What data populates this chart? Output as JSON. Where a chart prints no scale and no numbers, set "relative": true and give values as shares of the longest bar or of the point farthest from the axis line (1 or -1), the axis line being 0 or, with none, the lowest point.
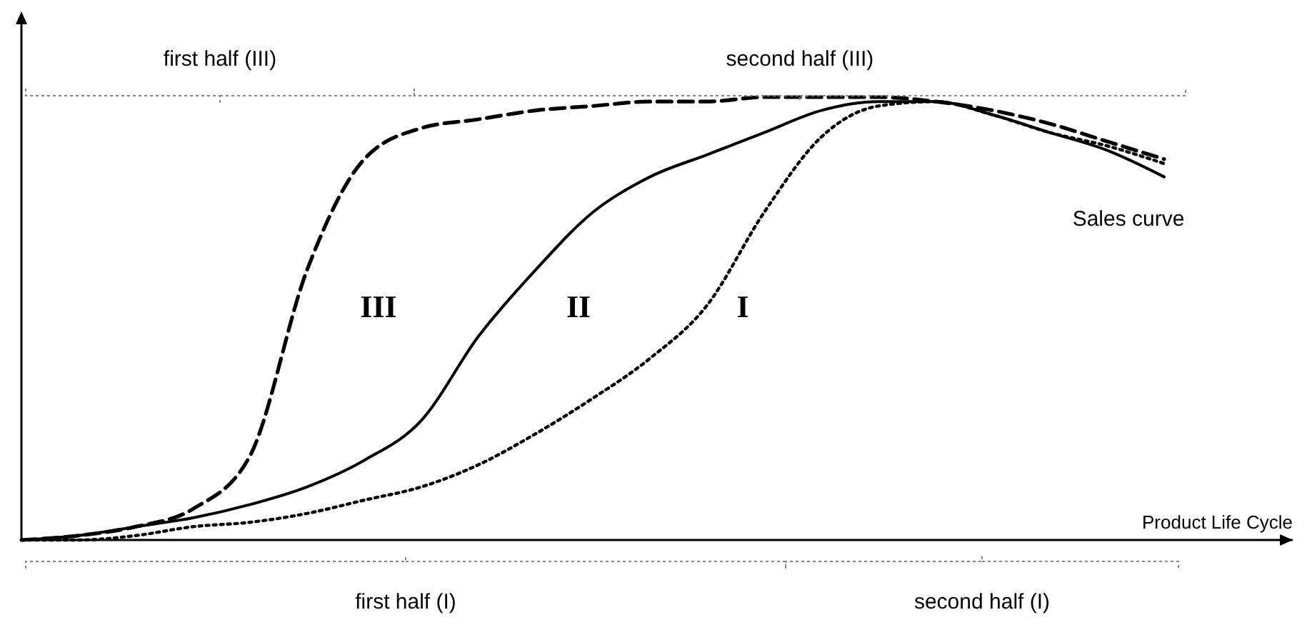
{
  "chart_data": {
    "type": "line",
    "relative": true,
    "xlabel": "Product Life Cycle",
    "categories": [
      null,
      null,
      null,
      null,
      null,
      null,
      null,
      null,
      null,
      null,
      null,
      null,
      null,
      null,
      null,
      null,
      null,
      null,
      null,
      null,
      null
    ],
    "series": [
      {
        "name": "III",
        "color": "#000000",
        "line_style": "dashed",
        "values": [
          0,
          0.01,
          0.03,
          0.07,
          0.19,
          0.61,
          0.86,
          0.93,
          0.95,
          0.97,
          0.98,
          0.99,
          0.99,
          1,
          1,
          1,
          0.99,
          0.97,
          0.94,
          0.9,
          0.86
        ]
      },
      {
        "name": "II",
        "color": "#000000",
        "line_style": "solid",
        "values": [
          0,
          0.01,
          0.03,
          0.05,
          0.08,
          0.12,
          0.18,
          0.27,
          0.46,
          0.61,
          0.74,
          0.82,
          0.87,
          0.92,
          0.97,
          0.99,
          0.99,
          0.96,
          0.92,
          0.88,
          0.82
        ]
      },
      {
        "name": "I",
        "color": "#000000",
        "line_style": "dotted",
        "values": [
          0,
          0,
          0.01,
          0.03,
          0.04,
          0.06,
          0.09,
          0.12,
          0.17,
          0.24,
          0.32,
          0.41,
          0.53,
          0.74,
          0.91,
          0.98,
          0.99,
          0.96,
          0.92,
          0.89,
          0.85
        ]
      }
    ],
    "annotations": [
      "first half (III)",
      "second half (III)",
      "first half (I)",
      "second half (I)",
      "Sales curve"
    ]
  }
}
